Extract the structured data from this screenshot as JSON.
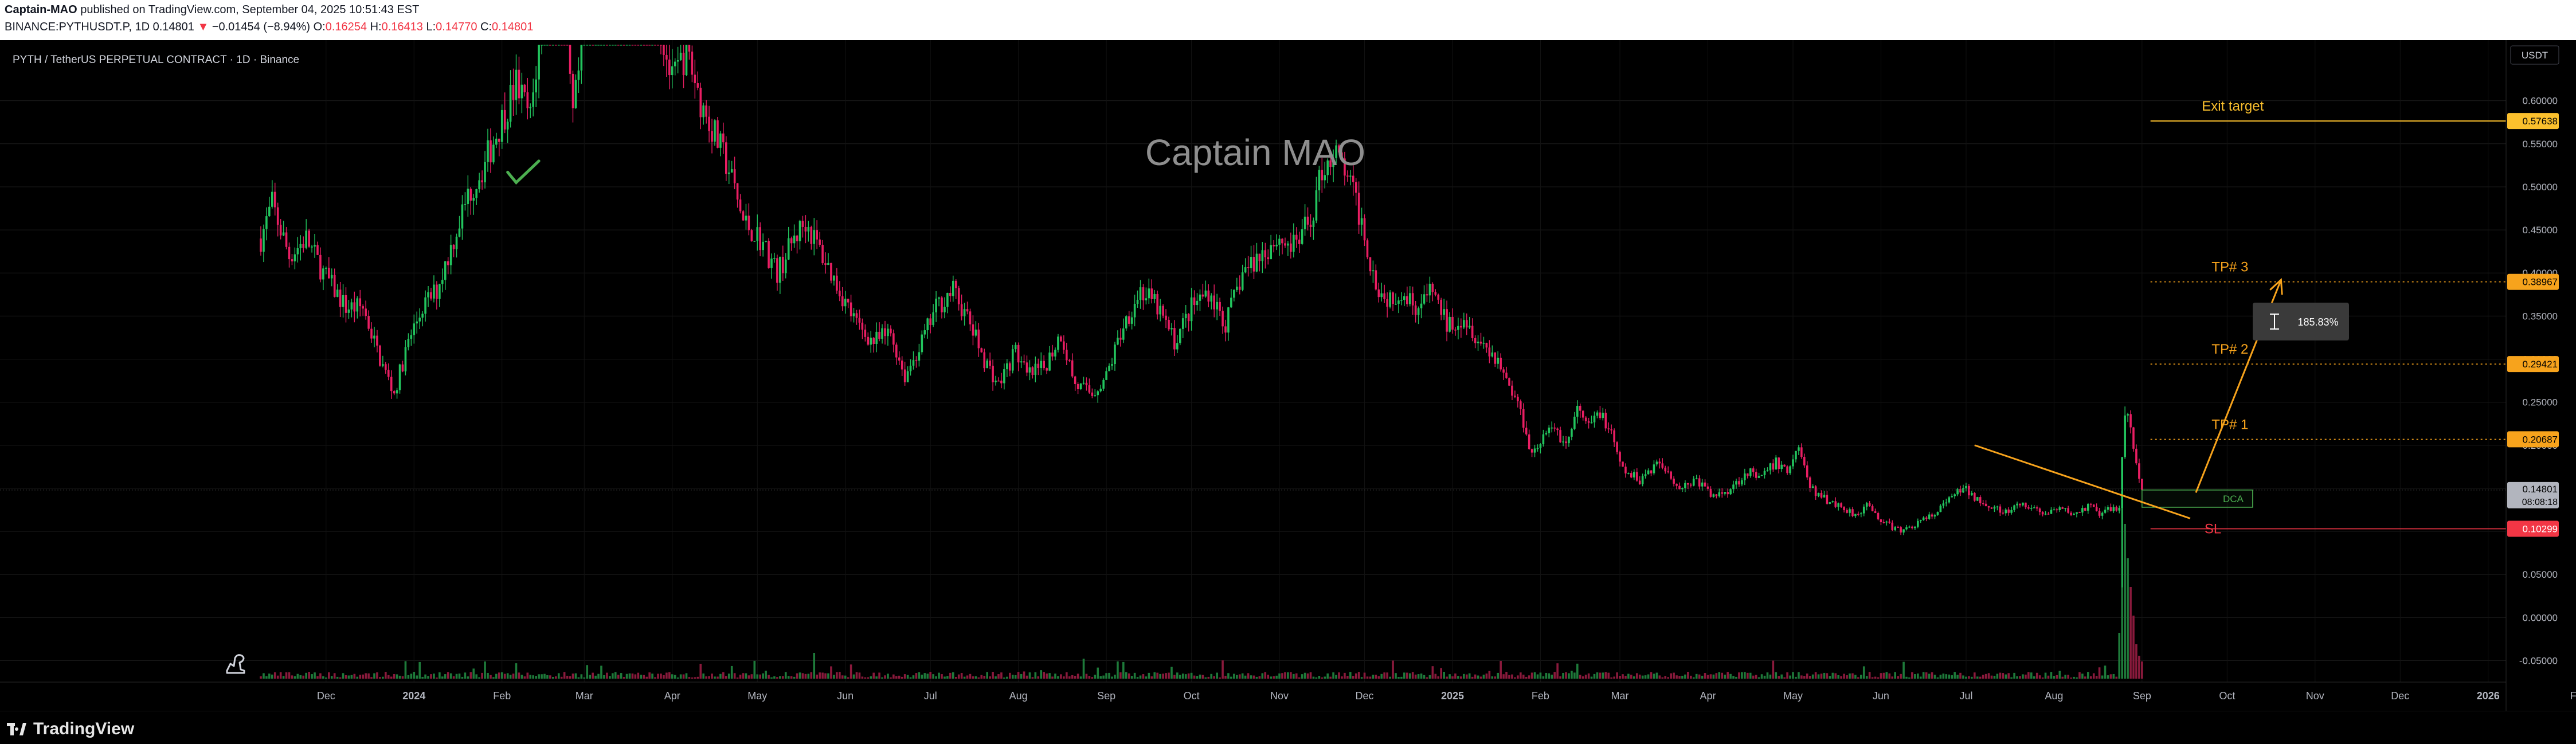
{
  "header": {
    "author": "Captain-MAO",
    "published": "published on TradingView.com, September 04, 2025 10:51:43 EST",
    "symbol_line": "BINANCE:PYTHUSDT.P, 1D",
    "last": "0.14801",
    "arrow": "▼",
    "change": "−0.01454 (−8.94%)",
    "o_label": "O:",
    "o_value": "0.16254",
    "h_label": "H:",
    "h_value": "0.16413",
    "l_label": "L:",
    "l_value": "0.14770",
    "c_label": "C:",
    "c_value": "0.14801"
  },
  "footer": {
    "brand": "TradingView"
  },
  "colors": {
    "up": "#22c55e",
    "down": "#e91e63",
    "orange": "#f7a31c",
    "yellow": "#fbc02d",
    "red": "#f23645",
    "green": "#4caf50",
    "grid": "#1c1c1c"
  },
  "chart_data": {
    "type": "candlestick",
    "title": "PYTH / TetherUS PERPETUAL CONTRACT · 1D · Binance",
    "watermark": "Captain MAO",
    "currency": "USDT",
    "ylim": [
      -0.075,
      0.665
    ],
    "y_ticks": [
      0.6,
      0.55,
      0.5,
      0.45,
      0.4,
      0.35,
      0.3,
      0.25,
      0.2,
      0.15,
      0.1,
      0.05,
      0.0,
      -0.05
    ],
    "y_tick_labels": [
      "0.60000",
      "0.55000",
      "0.50000",
      "0.45000",
      "0.40000",
      "0.35000",
      "0.30000",
      "0.25000",
      "0.20000",
      "0.15000",
      "0.10000",
      "0.05000",
      "0.00000",
      "-0.05000"
    ],
    "x_labels": [
      "Dec",
      "2024",
      "Feb",
      "Mar",
      "Apr",
      "May",
      "Jun",
      "Jul",
      "Aug",
      "Sep",
      "Oct",
      "Nov",
      "Dec",
      "2025",
      "Feb",
      "Mar",
      "Apr",
      "May",
      "Jun",
      "Jul",
      "Aug",
      "Sep",
      "Oct",
      "Nov",
      "Dec",
      "2026",
      "Fe"
    ],
    "x_label_days": [
      23,
      54,
      85,
      114,
      145,
      175,
      206,
      236,
      267,
      298,
      328,
      359,
      389,
      420,
      451,
      479,
      510,
      540,
      571,
      601,
      632,
      663,
      693,
      724,
      754,
      785,
      816
    ],
    "series_close": {
      "start_day": 0,
      "last_day": 663,
      "anchors": [
        [
          0,
          0.44
        ],
        [
          4,
          0.48
        ],
        [
          10,
          0.42
        ],
        [
          16,
          0.44
        ],
        [
          22,
          0.4
        ],
        [
          30,
          0.36
        ],
        [
          36,
          0.36
        ],
        [
          42,
          0.3
        ],
        [
          47,
          0.26
        ],
        [
          52,
          0.32
        ],
        [
          57,
          0.36
        ],
        [
          62,
          0.38
        ],
        [
          68,
          0.44
        ],
        [
          73,
          0.49
        ],
        [
          78,
          0.52
        ],
        [
          84,
          0.57
        ],
        [
          90,
          0.62
        ],
        [
          95,
          0.58
        ],
        [
          100,
          0.72
        ],
        [
          105,
          0.75
        ],
        [
          110,
          0.58
        ],
        [
          114,
          0.68
        ],
        [
          118,
          0.78
        ],
        [
          122,
          0.87
        ],
        [
          128,
          0.9
        ],
        [
          134,
          0.82
        ],
        [
          140,
          0.7
        ],
        [
          145,
          0.62
        ],
        [
          150,
          0.66
        ],
        [
          155,
          0.6
        ],
        [
          160,
          0.56
        ],
        [
          165,
          0.52
        ],
        [
          170,
          0.46
        ],
        [
          176,
          0.44
        ],
        [
          182,
          0.4
        ],
        [
          188,
          0.44
        ],
        [
          192,
          0.46
        ],
        [
          198,
          0.42
        ],
        [
          204,
          0.38
        ],
        [
          210,
          0.34
        ],
        [
          216,
          0.32
        ],
        [
          222,
          0.33
        ],
        [
          227,
          0.28
        ],
        [
          233,
          0.32
        ],
        [
          238,
          0.36
        ],
        [
          244,
          0.38
        ],
        [
          250,
          0.34
        ],
        [
          255,
          0.3
        ],
        [
          260,
          0.27
        ],
        [
          266,
          0.31
        ],
        [
          270,
          0.28
        ],
        [
          276,
          0.29
        ],
        [
          282,
          0.33
        ],
        [
          287,
          0.27
        ],
        [
          293,
          0.26
        ],
        [
          298,
          0.28
        ],
        [
          304,
          0.34
        ],
        [
          310,
          0.38
        ],
        [
          316,
          0.36
        ],
        [
          322,
          0.32
        ],
        [
          328,
          0.36
        ],
        [
          334,
          0.38
        ],
        [
          340,
          0.34
        ],
        [
          346,
          0.4
        ],
        [
          352,
          0.42
        ],
        [
          358,
          0.44
        ],
        [
          364,
          0.43
        ],
        [
          370,
          0.46
        ],
        [
          374,
          0.52
        ],
        [
          378,
          0.54
        ],
        [
          382,
          0.52
        ],
        [
          388,
          0.46
        ],
        [
          392,
          0.4
        ],
        [
          396,
          0.37
        ],
        [
          402,
          0.38
        ],
        [
          408,
          0.36
        ],
        [
          413,
          0.38
        ],
        [
          418,
          0.34
        ],
        [
          424,
          0.35
        ],
        [
          430,
          0.32
        ],
        [
          436,
          0.3
        ],
        [
          440,
          0.27
        ],
        [
          444,
          0.24
        ],
        [
          448,
          0.19
        ],
        [
          452,
          0.21
        ],
        [
          456,
          0.22
        ],
        [
          460,
          0.2
        ],
        [
          464,
          0.24
        ],
        [
          468,
          0.22
        ],
        [
          472,
          0.24
        ],
        [
          476,
          0.21
        ],
        [
          480,
          0.17
        ],
        [
          486,
          0.16
        ],
        [
          492,
          0.18
        ],
        [
          496,
          0.17
        ],
        [
          500,
          0.15
        ],
        [
          506,
          0.16
        ],
        [
          512,
          0.14
        ],
        [
          518,
          0.15
        ],
        [
          524,
          0.17
        ],
        [
          528,
          0.16
        ],
        [
          534,
          0.18
        ],
        [
          538,
          0.17
        ],
        [
          542,
          0.2
        ],
        [
          546,
          0.15
        ],
        [
          550,
          0.14
        ],
        [
          556,
          0.13
        ],
        [
          562,
          0.12
        ],
        [
          566,
          0.13
        ],
        [
          572,
          0.11
        ],
        [
          578,
          0.1
        ],
        [
          584,
          0.11
        ],
        [
          590,
          0.12
        ],
        [
          596,
          0.14
        ],
        [
          600,
          0.15
        ],
        [
          604,
          0.14
        ],
        [
          610,
          0.13
        ],
        [
          614,
          0.12
        ],
        [
          620,
          0.13
        ],
        [
          626,
          0.125
        ],
        [
          630,
          0.12
        ],
        [
          634,
          0.125
        ],
        [
          640,
          0.12
        ],
        [
          644,
          0.13
        ],
        [
          648,
          0.12
        ],
        [
          652,
          0.125
        ],
        [
          655,
          0.13
        ],
        [
          657,
          0.24
        ],
        [
          659,
          0.22
        ],
        [
          661,
          0.18
        ],
        [
          663,
          0.148
        ]
      ]
    },
    "volume": {
      "scale_max": 1.0
    },
    "last_price": 0.14801,
    "countdown": "08:08:18",
    "levels": [
      {
        "name": "exit",
        "label": "Exit target",
        "value": 0.57638,
        "tag": "0.57638",
        "style": "solid",
        "color": "#fbc02d"
      },
      {
        "name": "tp3",
        "label": "TP# 3",
        "value": 0.38967,
        "tag": "0.38967",
        "style": "dotted",
        "color": "#f7a31c"
      },
      {
        "name": "tp2",
        "label": "TP# 2",
        "value": 0.29421,
        "tag": "0.29421",
        "style": "dotted",
        "color": "#f7a31c"
      },
      {
        "name": "tp1",
        "label": "TP# 1",
        "value": 0.20687,
        "tag": "0.20687",
        "style": "dotted",
        "color": "#f7a31c"
      },
      {
        "name": "sl",
        "label": "SL",
        "value": 0.10299,
        "tag": "0.10299",
        "style": "solid",
        "color": "#f23645"
      }
    ],
    "dca": {
      "label": "DCA",
      "from_day": 663,
      "to_day": 702,
      "y_top": 0.148,
      "y_bottom": 0.128
    },
    "trendline": {
      "from": [
        604,
        0.2
      ],
      "to": [
        680,
        0.115
      ]
    },
    "projection": {
      "from": [
        682,
        0.145
      ],
      "to": [
        712,
        0.392
      ],
      "label": "185.83%"
    }
  }
}
